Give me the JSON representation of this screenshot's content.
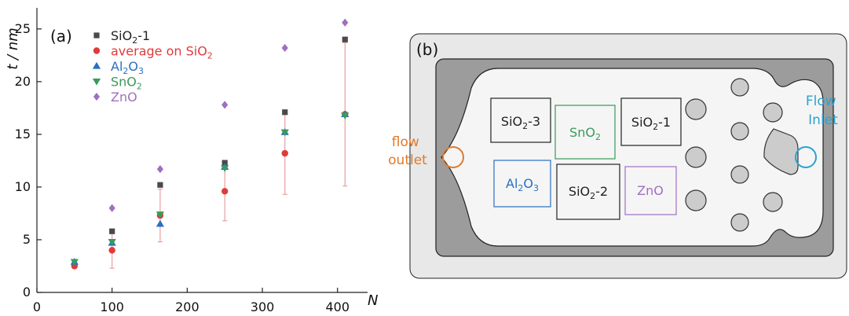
{
  "panel_a": {
    "label": "(a)",
    "y_axis_label": "t / nm",
    "x_axis_label": "N"
  },
  "panel_b": {
    "label": "(b)",
    "flow_outlet": [
      "flow",
      "outlet"
    ],
    "flow_inlet": [
      "Flow",
      "Inlet"
    ],
    "boxes": [
      {
        "id": "sio2-3",
        "label": "SiO2-3",
        "base": "SiO",
        "sub": "2",
        "suffix": "-3",
        "color": "#222222"
      },
      {
        "id": "sno2",
        "label": "SnO2",
        "base": "SnO",
        "sub": "2",
        "suffix": "",
        "color": "#3a9a5a"
      },
      {
        "id": "sio2-1",
        "label": "SiO2-1",
        "base": "SiO",
        "sub": "2",
        "suffix": "-1",
        "color": "#222222"
      },
      {
        "id": "al2o3",
        "label": "Al2O3",
        "color": "#2a6fc0"
      },
      {
        "id": "sio2-2",
        "label": "SiO2-2",
        "base": "SiO",
        "sub": "2",
        "suffix": "-2",
        "color": "#222222"
      },
      {
        "id": "zno",
        "label": "ZnO",
        "base": "ZnO",
        "sub": "",
        "suffix": "",
        "color": "#a070c0"
      }
    ],
    "colors": {
      "outer_frame": "#e8e8e8",
      "inner_frame": "#9c9c9c",
      "chamber": "#f5f5f5",
      "pillar": "#cccccc",
      "outlet": "#e07a2a",
      "inlet": "#2aa3cf"
    }
  },
  "chart_data": {
    "type": "scatter",
    "xlabel": "N",
    "ylabel": "t / nm",
    "xlim": [
      0,
      440
    ],
    "ylim": [
      0,
      27
    ],
    "xticks": [
      0,
      100,
      200,
      300,
      400
    ],
    "yticks": [
      0,
      5,
      10,
      15,
      20,
      25
    ],
    "grid": false,
    "legend_position": "top-left",
    "series": [
      {
        "name": "SiO2-1",
        "name_base": "SiO",
        "name_sub": "2",
        "name_suffix": "-1",
        "marker": "square",
        "color": "#4a4a4a",
        "x": [
          100,
          164,
          250,
          330,
          410
        ],
        "y": [
          5.8,
          10.2,
          12.3,
          17.1,
          24.0
        ]
      },
      {
        "name": "average on SiO2",
        "name_base": "average on SiO",
        "name_sub": "2",
        "name_suffix": "",
        "marker": "circle",
        "color": "#e03a3a",
        "x": [
          50,
          100,
          164,
          250,
          330,
          410
        ],
        "y": [
          2.5,
          4.0,
          7.3,
          9.6,
          13.2,
          16.9
        ],
        "error": [
          0.1,
          1.7,
          2.5,
          2.8,
          3.9,
          6.8
        ],
        "error_color": "#e8a0a0"
      },
      {
        "name": "Al2O3",
        "marker": "triangle-up",
        "color": "#2a6fc0",
        "x": [
          50,
          100,
          164,
          250,
          330,
          410
        ],
        "y": [
          2.9,
          4.7,
          6.5,
          11.9,
          15.2,
          16.9
        ]
      },
      {
        "name": "SnO2",
        "name_base": "SnO",
        "name_sub": "2",
        "name_suffix": "",
        "marker": "triangle-down",
        "color": "#3a9a5a",
        "x": [
          50,
          100,
          164,
          250,
          330,
          410
        ],
        "y": [
          2.9,
          4.8,
          7.4,
          11.8,
          15.2,
          16.8
        ]
      },
      {
        "name": "ZnO",
        "name_base": "ZnO",
        "name_sub": "",
        "name_suffix": "",
        "marker": "diamond",
        "color": "#a070c0",
        "x": [
          100,
          164,
          250,
          330,
          410
        ],
        "y": [
          8.0,
          11.7,
          17.8,
          23.2,
          25.6
        ]
      }
    ]
  }
}
